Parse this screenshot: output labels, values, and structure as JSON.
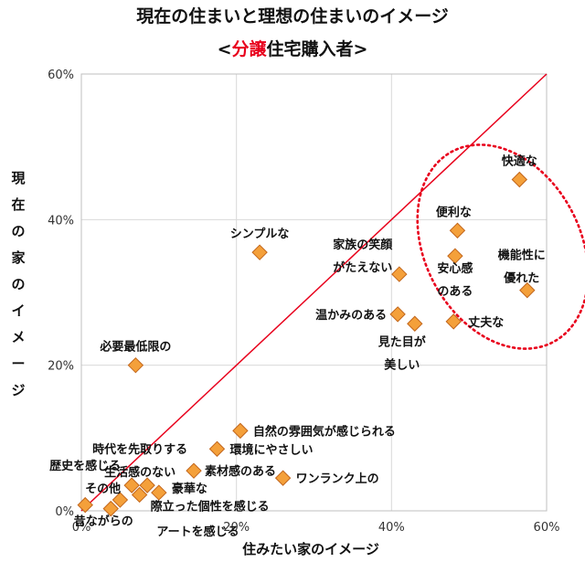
{
  "chart_data": {
    "type": "scatter",
    "title_parts": [
      "現在の住まいと理想の住まいのイメージ"
    ],
    "subtitle_parts": [
      {
        "text": "<",
        "color": "#111111"
      },
      {
        "text": "分譲",
        "color": "#e8001c"
      },
      {
        "text": "住宅購入者>",
        "color": "#111111"
      }
    ],
    "xlabel": "住みたい家のイメージ",
    "ylabel": "現在の家のイメージ",
    "xlim": [
      0,
      60
    ],
    "ylim": [
      0,
      60
    ],
    "x_ticks": [
      0,
      20,
      40,
      60
    ],
    "y_ticks": [
      0,
      20,
      40,
      60
    ],
    "x_tick_labels": [
      "0%",
      "20%",
      "40%",
      "60%"
    ],
    "y_tick_labels": [
      "0%",
      "20%",
      "40%",
      "60%"
    ],
    "gridlines": "vertical-and-horizontal",
    "reference_line": {
      "from": [
        0,
        0
      ],
      "to": [
        60,
        60
      ],
      "color": "#e8001c"
    },
    "highlight_ellipse": {
      "color": "#e8001c",
      "style": "dotted"
    },
    "marker_color": "#f4a03a",
    "marker_stroke": "#c2661c",
    "points": [
      {
        "label_lines": [
          "快適な"
        ],
        "x": 56.5,
        "y": 45.5
      },
      {
        "label_lines": [
          "便利な"
        ],
        "x": 48.5,
        "y": 38.5
      },
      {
        "label_lines": [
          "安心感",
          "のある"
        ],
        "x": 48.2,
        "y": 35.0
      },
      {
        "label_lines": [
          "機能性に",
          "優れた"
        ],
        "x": 57.5,
        "y": 30.3
      },
      {
        "label_lines": [
          "丈夫な"
        ],
        "x": 48.0,
        "y": 26.0
      },
      {
        "label_lines": [
          "家族の笑顔",
          "がたえない"
        ],
        "x": 41.0,
        "y": 32.5
      },
      {
        "label_lines": [
          "温かみのある"
        ],
        "x": 40.8,
        "y": 27.0
      },
      {
        "label_lines": [
          "見た目が",
          "美しい"
        ],
        "x": 43.0,
        "y": 25.7
      },
      {
        "label_lines": [
          "シンプルな"
        ],
        "x": 23.0,
        "y": 35.5
      },
      {
        "label_lines": [
          "必要最低限の"
        ],
        "x": 7.0,
        "y": 20.0
      },
      {
        "label_lines": [
          "自然の雰囲気が感じられる"
        ],
        "x": 20.5,
        "y": 11.0
      },
      {
        "label_lines": [
          "環境にやさしい"
        ],
        "x": 17.5,
        "y": 8.5
      },
      {
        "label_lines": [
          "素材感のある"
        ],
        "x": 14.5,
        "y": 5.5
      },
      {
        "label_lines": [
          "ワンランク上の"
        ],
        "x": 26.0,
        "y": 4.5
      },
      {
        "label_lines": [
          "時代を先取りする",
          "生活感のない"
        ],
        "x": 8.5,
        "y": 3.5
      },
      {
        "label_lines": [
          "歴史を感じる",
          "その他"
        ],
        "x": 6.5,
        "y": 3.5
      },
      {
        "label_lines": [
          "豪華な"
        ],
        "x": 10.0,
        "y": 2.5
      },
      {
        "label_lines": [
          "際立った個性を感じる"
        ],
        "x": 7.5,
        "y": 2.2
      },
      {
        "label_lines": [
          "アートを感じる"
        ],
        "x": 5.0,
        "y": 1.5
      },
      {
        "label_lines": [
          "昔ながらの"
        ],
        "x": 3.8,
        "y": 0.3
      },
      {
        "label_lines": [],
        "x": 0.5,
        "y": 0.8
      }
    ]
  }
}
